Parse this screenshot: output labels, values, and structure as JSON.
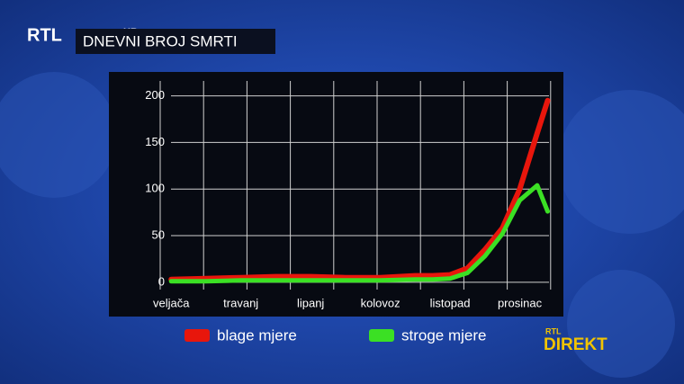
{
  "logo": {
    "brand": "RTL",
    "sub": "HR"
  },
  "badge": {
    "brand": "RTL",
    "name": "DIREKT"
  },
  "chart_data": {
    "type": "line",
    "title": "DNEVNI BROJ SMRTI",
    "x": [
      0,
      1,
      2,
      3,
      4,
      5,
      6,
      7,
      7.5,
      8,
      8.5,
      9,
      9.5,
      10,
      10.5,
      10.8
    ],
    "xlim": [
      -0.6,
      11.2
    ],
    "xticks": [
      {
        "value": 0,
        "label": "veljača"
      },
      {
        "value": 2,
        "label": "travanj"
      },
      {
        "value": 4,
        "label": "lipanj"
      },
      {
        "value": 6,
        "label": "kolovoz"
      },
      {
        "value": 8,
        "label": "listopad"
      },
      {
        "value": 10,
        "label": "prosinac"
      }
    ],
    "ylim": [
      -4,
      216
    ],
    "yticks": [
      0,
      50,
      100,
      150,
      200
    ],
    "grid": true,
    "legend": "bottom",
    "series": [
      {
        "name": "blage mjere",
        "color": "#e8160c",
        "values": [
          3,
          4,
          5,
          6,
          6,
          5,
          5,
          7,
          7,
          8,
          15,
          35,
          58,
          100,
          160,
          195
        ]
      },
      {
        "name": "stroge mjere",
        "color": "#3be024",
        "values": [
          1,
          1,
          2,
          2,
          2,
          2,
          2,
          3,
          3,
          4,
          10,
          28,
          52,
          88,
          104,
          76
        ]
      }
    ]
  }
}
